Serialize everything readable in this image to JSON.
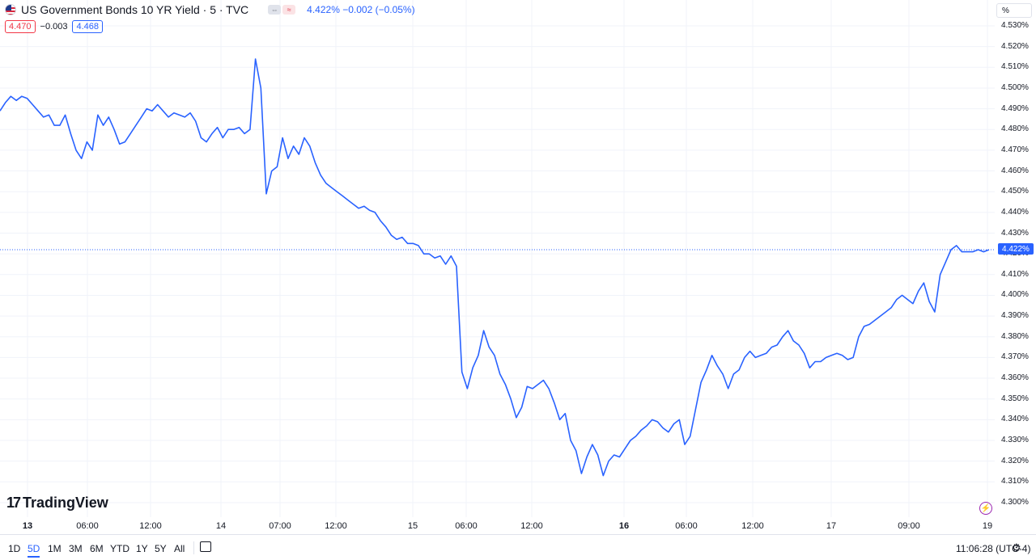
{
  "header": {
    "title": "US Government Bonds 10 YR Yield · 5 · TVC",
    "last_change": "4.422%  −0.002 (−0.05%)",
    "bid": "4.470",
    "spread": "−0.003",
    "ask": "4.468",
    "badge1": "⇔",
    "badge2": "≈"
  },
  "toolbar": {
    "unit": "%",
    "ranges": [
      "1D",
      "5D",
      "1M",
      "3M",
      "6M",
      "YTD",
      "1Y",
      "5Y",
      "All"
    ],
    "active_range": "5D",
    "clock": "11:06:28 (UTC-4)"
  },
  "brand": {
    "logo_text": "TradingView",
    "logo_mark": "17"
  },
  "colors": {
    "line": "#2962ff",
    "grid": "#f0f3fa",
    "text": "#131722",
    "up_box": "#f23645"
  },
  "chart_data": {
    "type": "line",
    "title": "US Government Bonds 10 YR Yield · 5 · TVC",
    "xlabel": "",
    "ylabel": "",
    "ylim": [
      4.295,
      4.533
    ],
    "y_ticks": [
      "4.530%",
      "4.520%",
      "4.510%",
      "4.500%",
      "4.490%",
      "4.480%",
      "4.470%",
      "4.460%",
      "4.450%",
      "4.440%",
      "4.430%",
      "4.420%",
      "4.410%",
      "4.400%",
      "4.390%",
      "4.380%",
      "4.370%",
      "4.360%",
      "4.350%",
      "4.340%",
      "4.330%",
      "4.320%",
      "4.310%",
      "4.300%"
    ],
    "y_tick_values": [
      4.53,
      4.52,
      4.51,
      4.5,
      4.49,
      4.48,
      4.47,
      4.46,
      4.45,
      4.44,
      4.43,
      4.42,
      4.41,
      4.4,
      4.39,
      4.38,
      4.37,
      4.36,
      4.35,
      4.34,
      4.33,
      4.32,
      4.31,
      4.3
    ],
    "x_ticks": [
      "13",
      "06:00",
      "12:00",
      "14",
      "07:00",
      "12:00",
      "15",
      "06:00",
      "12:00",
      "16",
      "06:00",
      "12:00",
      "17",
      "09:00",
      "19"
    ],
    "x_tick_bold": [
      true,
      false,
      false,
      false,
      false,
      false,
      false,
      false,
      false,
      true,
      false,
      false,
      false,
      false,
      false
    ],
    "last_value": 4.422,
    "last_label": "4.422%",
    "grid": true,
    "series": [
      {
        "values": [
          4.489,
          4.493,
          4.496,
          4.494,
          4.496,
          4.495,
          4.492,
          4.489,
          4.486,
          4.487,
          4.482,
          4.482,
          4.487,
          4.478,
          4.47,
          4.466,
          4.474,
          4.47,
          4.487,
          4.482,
          4.486,
          4.48,
          4.473,
          4.474,
          4.478,
          4.482,
          4.486,
          4.49,
          4.489,
          4.492,
          4.489,
          4.486,
          4.488,
          4.487,
          4.486,
          4.488,
          4.484,
          4.476,
          4.474,
          4.478,
          4.481,
          4.476,
          4.48,
          4.48,
          4.481,
          4.478,
          4.48,
          4.514,
          4.5,
          4.449,
          4.46,
          4.462,
          4.476,
          4.466,
          4.472,
          4.468,
          4.476,
          4.472,
          4.464,
          4.458,
          4.454,
          4.452,
          4.45,
          4.448,
          4.446,
          4.444,
          4.442,
          4.443,
          4.441,
          4.44,
          4.436,
          4.433,
          4.429,
          4.427,
          4.428,
          4.425,
          4.425,
          4.424,
          4.42,
          4.42,
          4.418,
          4.419,
          4.415,
          4.419,
          4.414,
          4.363,
          4.355,
          4.365,
          4.371,
          4.383,
          4.375,
          4.371,
          4.362,
          4.357,
          4.35,
          4.341,
          4.346,
          4.356,
          4.355,
          4.357,
          4.359,
          4.355,
          4.348,
          4.34,
          4.343,
          4.33,
          4.325,
          4.314,
          4.322,
          4.328,
          4.323,
          4.313,
          4.32,
          4.323,
          4.322,
          4.326,
          4.33,
          4.332,
          4.335,
          4.337,
          4.34,
          4.339,
          4.336,
          4.334,
          4.338,
          4.34,
          4.328,
          4.332,
          4.345,
          4.358,
          4.364,
          4.371,
          4.366,
          4.362,
          4.355,
          4.362,
          4.364,
          4.37,
          4.373,
          4.37,
          4.371,
          4.372,
          4.375,
          4.376,
          4.38,
          4.383,
          4.378,
          4.376,
          4.372,
          4.365,
          4.368,
          4.368,
          4.37,
          4.371,
          4.372,
          4.371,
          4.369,
          4.37,
          4.38,
          4.385,
          4.386,
          4.388,
          4.39,
          4.392,
          4.394,
          4.398,
          4.4,
          4.398,
          4.396,
          4.402,
          4.406,
          4.397,
          4.392,
          4.41,
          4.416,
          4.422,
          4.424,
          4.421,
          4.421,
          4.421,
          4.422,
          4.421,
          4.422
        ]
      }
    ]
  }
}
